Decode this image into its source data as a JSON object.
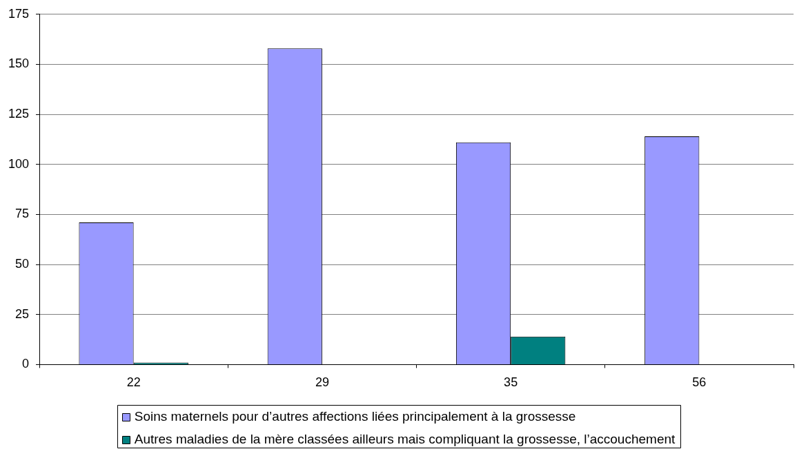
{
  "chart_data": {
    "type": "bar",
    "categories": [
      "22",
      "29",
      "35",
      "56"
    ],
    "series": [
      {
        "name": "Soins maternels pour d’autres affections liées principalement à la grossesse",
        "color": "#9999ff",
        "values": [
          71,
          158,
          111,
          114
        ]
      },
      {
        "name": "Autres maladies de la mère classées ailleurs mais compliquant la grossesse, l’accouchement",
        "color": "#008080",
        "values": [
          1,
          null,
          14,
          null
        ]
      }
    ],
    "ylim": [
      0,
      175
    ],
    "yticks": [
      0,
      25,
      50,
      75,
      100,
      125,
      150,
      175
    ],
    "grid": "y",
    "legend": "bottom"
  }
}
